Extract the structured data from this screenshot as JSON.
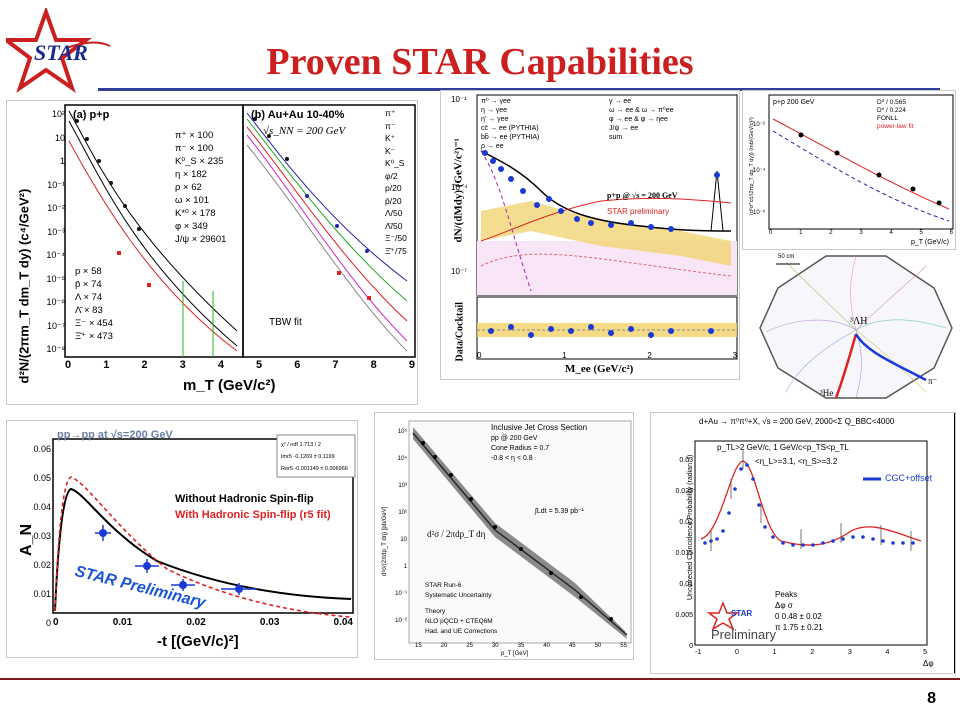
{
  "slide": {
    "logo_text": "STAR",
    "title": "Proven STAR Capabilities",
    "page_number": "8",
    "colors": {
      "title": "#cc1f1f",
      "rule": "#2f3f9a",
      "logo_star": "#cc1f1f",
      "logo_text": "#1a2a8c"
    }
  },
  "spectra_panel": {
    "left_label": "(a) p+p",
    "right_label": "(b) Au+Au 10-40%",
    "energy": "√s_NN = 200 GeV",
    "ylabel": "d²N/(2πm_T dm_T dy)  (c⁴/GeV²)",
    "xlabel": "m_T  (GeV/c²)",
    "y_ticks": [
      "10²",
      "10",
      "1",
      "10⁻¹",
      "10⁻²",
      "10⁻³",
      "10⁻⁴",
      "10⁻⁵",
      "10⁻⁶",
      "10⁻⁷",
      "10⁻⁸"
    ],
    "x_ticks": [
      "0",
      "1",
      "2",
      "3",
      "4",
      "5",
      "6",
      "7",
      "8",
      "9"
    ],
    "legend_pp": [
      "π⁺ × 100",
      "π⁻ × 100",
      "K⁰_S × 235",
      "η × 182",
      "ρ × 62",
      "ω × 101",
      "K*⁰ × 178",
      "φ × 349",
      "J/ψ × 29601"
    ],
    "legend_pp2": [
      "p × 58",
      "p̄ × 74",
      "Λ × 74",
      "Λ̄ × 83",
      "Ξ⁻ × 454",
      "Ξ̄⁺ × 473"
    ],
    "legend_auau": [
      "π⁺",
      "π⁻",
      "K⁺",
      "K⁻",
      "K⁰_S",
      "φ/2",
      "p/20",
      "p̄/20",
      "Λ/50",
      "Λ̄/50",
      "Ξ⁻/50",
      "Ξ̄⁺/75"
    ],
    "fit_label": "TBW fit"
  },
  "dielectron_panel": {
    "ylabel": "dN/(dMdy) (GeV/c²)⁻¹",
    "ylabel2": "Data/Cocktail",
    "xlabel": "M_ee (GeV/c²)",
    "legend": [
      "π⁰ → γee",
      "η → γee",
      "η' → γee",
      "cc̄ → ee (PYTHIA)",
      "bb̄ → ee (PYTHIA)",
      "ρ → ee",
      "γ → ee",
      "ω → ee & ω → π⁰ee",
      "φ → ee & φ → ηee",
      "J/ψ → ee",
      "sum"
    ],
    "system": "p+p @ √s = 200 GeV",
    "preliminary": "STAR preliminary",
    "y_ticks": [
      "10⁻¹",
      "10⁻⁴",
      "10⁻⁷"
    ],
    "x_ticks": [
      "0",
      "1",
      "2",
      "3"
    ]
  },
  "charm_panel": {
    "system": "p+p 200 GeV",
    "legend": [
      "D⁰ / 0.565",
      "D* / 0.224",
      "FONLL",
      "power-law fit"
    ],
    "ylabel": "(d²σ^cc̄/(2πp_T dp_T dy)) (mb/(GeV/c)²)",
    "xlabel": "p_T (GeV/c)",
    "x_ticks": [
      "0",
      "1",
      "2",
      "3",
      "4",
      "5",
      "6"
    ],
    "y_ticks": [
      "10⁻²",
      "10⁻⁴",
      "10⁻⁶"
    ]
  },
  "event_display": {
    "scale": "50 cm",
    "particle1": "³ΛH",
    "particle2": "π⁻",
    "particle3": "³He"
  },
  "spinflip_panel": {
    "header": "pp→pp at √s=200 GeV",
    "fit_box": [
      "χ² / ndf    1.713 / 2",
      "Imr5    -0.1269 ± 0.1199",
      "Rer5    -0.001149 ± 0.006966"
    ],
    "legend_black": "Without Hadronic Spin-flip",
    "legend_red": "With Hadronic Spin-flip (r5 fit)",
    "preliminary": "STAR Preliminary",
    "ylabel": "A_N",
    "xlabel": "-t [(GeV/c)²]",
    "y_ticks": [
      "0.06",
      "0.05",
      "0.04",
      "0.03",
      "0.02",
      "0.01",
      "0"
    ],
    "x_ticks": [
      "0",
      "0.01",
      "0.02",
      "0.03",
      "0.04"
    ]
  },
  "jet_panel": {
    "title": "Inclusive Jet Cross Section",
    "line1": "pp @ 200 GeV",
    "line2": "Cone Radius = 0.7",
    "line3": "-0.8 < η < 0.8",
    "lumi": "∫Ldt = 5.39 pb⁻¹",
    "formula": "d²σ / 2πdp_T dη",
    "ylabel": "d²σ/(2πdp_T dη) [pb/GeV]",
    "xlabel": "p_T [GeV]",
    "legend": [
      "STAR Run-6",
      "Systematic Uncertainty",
      "Theory",
      "NLO pQCD + CTEQ6M",
      "Had. and UE Corrections"
    ],
    "y_ticks": [
      "10⁵",
      "10⁴",
      "10³",
      "10²",
      "10",
      "1",
      "10⁻¹",
      "10⁻²"
    ],
    "x_ticks": [
      "15",
      "20",
      "25",
      "30",
      "35",
      "40",
      "45",
      "50",
      "55"
    ]
  },
  "correlation_panel": {
    "header": "d+Au → π⁰π⁰+X, √s = 200 GeV, 2000<Σ Q_BBC<4000",
    "line2": "p_TL>2 GeV/c, 1 GeV/c<p_TS<p_TL",
    "line3": "<η_L>=3.1, <η_S>=3.2",
    "legend": "CGC+offset",
    "ylabel": "Uncorrected Coincidence Probability (radian⁻¹)",
    "xlabel": "Δφ",
    "peaks_title": "Peaks",
    "peaks_header": "Δφ     σ",
    "peaks_rows": [
      "0      0.48 ± 0.02",
      "π      1.75 ± 0.21"
    ],
    "preliminary": "Preliminary",
    "star": "STAR",
    "y_ticks": [
      "0.03",
      "0.025",
      "0.02",
      "0.015",
      "0.01",
      "0.005",
      "0"
    ],
    "x_ticks": [
      "-1",
      "0",
      "1",
      "2",
      "3",
      "4",
      "5"
    ]
  }
}
